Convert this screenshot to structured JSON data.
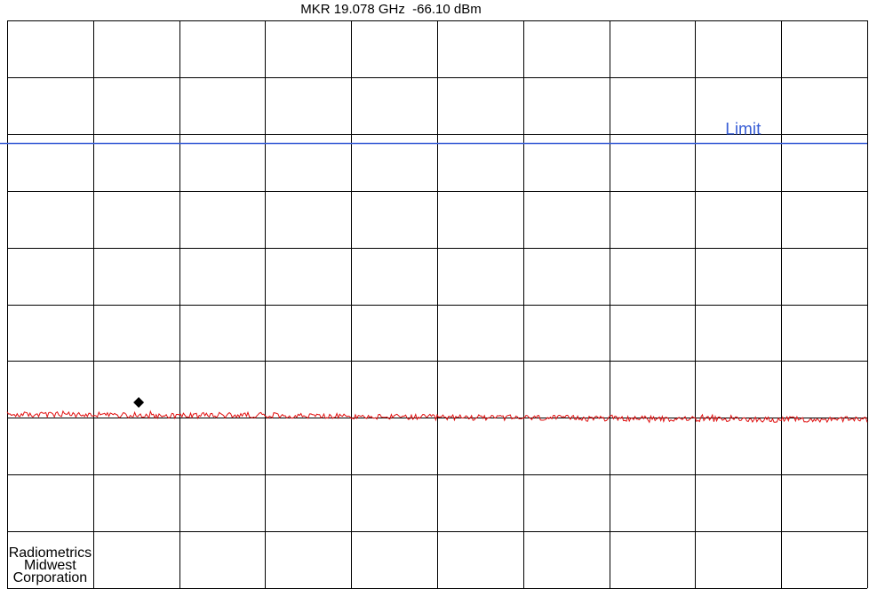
{
  "marker": {
    "readout": "MKR 19.078 GHz  -66.10 dBm"
  },
  "branding": {
    "company_lines": [
      "Radiometrics",
      "Midwest",
      "Corporation"
    ]
  },
  "colors": {
    "grid": "#000000",
    "trace": "#e01010",
    "limit": "#3a5fd6",
    "marker": "#000000",
    "background": "#ffffff"
  },
  "chart_data": {
    "type": "line",
    "grid": true,
    "divisions": {
      "x": 10,
      "y": 10
    },
    "limit": {
      "label": "Limit",
      "y_div_from_bottom": 7.84
    },
    "marker": {
      "x_div": 1.53,
      "y_div_from_bottom": 3.27,
      "frequency": "19.078 GHz",
      "amplitude": "-66.10 dBm"
    },
    "series": [
      {
        "trace_level_div_from_bottom": [
          3.06,
          3.05,
          3.04,
          3.05,
          3.02,
          3.01,
          3.0,
          2.99,
          2.98,
          2.97,
          2.97
        ],
        "noise_div": 0.05,
        "points": 600
      }
    ]
  }
}
